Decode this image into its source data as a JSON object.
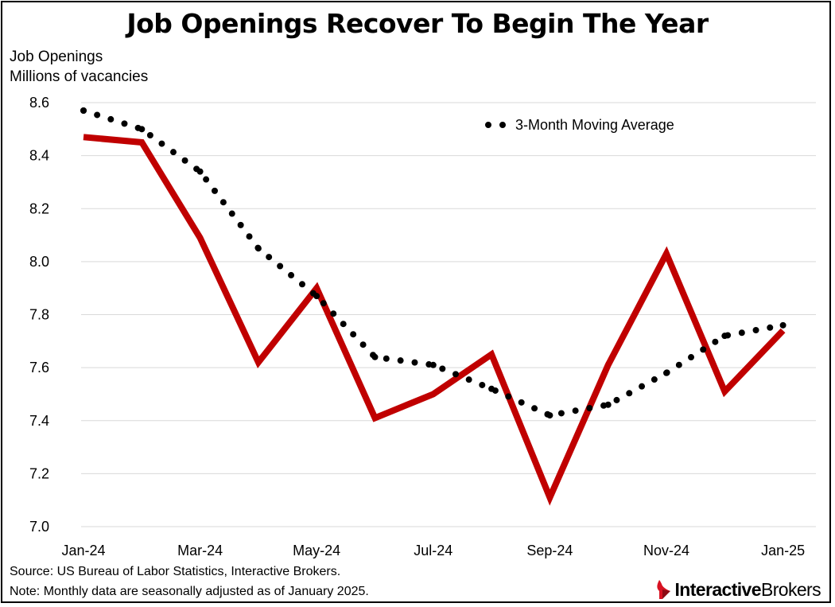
{
  "title": "Job Openings Recover To Begin The Year",
  "y_axis_title_line1": "Job Openings",
  "y_axis_title_line2": "Millions of vacancies",
  "source_line1": "Source: US Bureau of Labor Statistics, Interactive Brokers.",
  "source_line2": "Note: Monthly data are seasonally adjusted as of January 2025.",
  "logo": {
    "part1": "Interactive",
    "part2": "Brokers",
    "icon": "interactive-brokers-flame-icon",
    "color": "#d81222"
  },
  "colors": {
    "series_line": "#c00000",
    "moving_average": "#000000",
    "gridline": "#d9d9d9"
  },
  "chart_data": {
    "type": "line",
    "x": [
      "Jan-24",
      "Feb-24",
      "Mar-24",
      "Apr-24",
      "May-24",
      "Jun-24",
      "Jul-24",
      "Aug-24",
      "Sep-24",
      "Oct-24",
      "Nov-24",
      "Dec-24",
      "Jan-25"
    ],
    "x_tick_labels": [
      "Jan-24",
      "Mar-24",
      "May-24",
      "Jul-24",
      "Sep-24",
      "Nov-24",
      "Jan-25"
    ],
    "ylim": [
      7.0,
      8.6
    ],
    "y_ticks": [
      "7.0",
      "7.2",
      "7.4",
      "7.6",
      "7.8",
      "8.0",
      "8.2",
      "8.4",
      "8.6"
    ],
    "grid": true,
    "legend_position": "top-right",
    "series": [
      {
        "values": [
          8.47,
          8.45,
          8.09,
          7.62,
          7.9,
          7.41,
          7.5,
          7.65,
          7.11,
          7.61,
          8.03,
          7.51,
          7.74
        ],
        "style": "solid"
      },
      {
        "name": "3-Month Moving Average",
        "values": [
          8.57,
          8.5,
          8.34,
          8.05,
          7.87,
          7.64,
          7.61,
          7.52,
          7.42,
          7.46,
          7.58,
          7.72,
          7.76
        ],
        "style": "dotted"
      }
    ]
  }
}
